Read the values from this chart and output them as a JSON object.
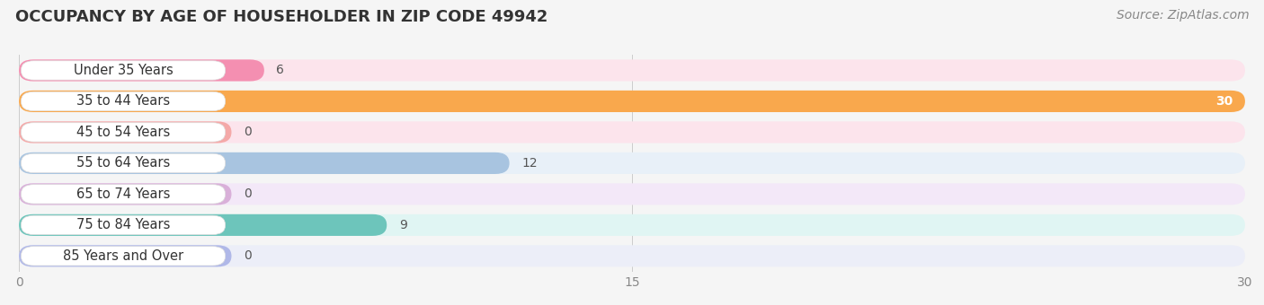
{
  "title": "OCCUPANCY BY AGE OF HOUSEHOLDER IN ZIP CODE 49942",
  "source": "Source: ZipAtlas.com",
  "categories": [
    "Under 35 Years",
    "35 to 44 Years",
    "45 to 54 Years",
    "55 to 64 Years",
    "65 to 74 Years",
    "75 to 84 Years",
    "85 Years and Over"
  ],
  "values": [
    6,
    30,
    0,
    12,
    0,
    9,
    0
  ],
  "bar_colors": [
    "#f48fb1",
    "#f9a84d",
    "#f4a9a8",
    "#a8c4e0",
    "#d9b0d9",
    "#6dc5bb",
    "#b0b8e8"
  ],
  "bar_bg_colors": [
    "#fce4ec",
    "#fff3e0",
    "#fce4ec",
    "#e8f0f8",
    "#f3e8f8",
    "#e0f5f3",
    "#eceef8"
  ],
  "xlim": [
    0,
    30
  ],
  "xticks": [
    0,
    15,
    30
  ],
  "background_color": "#f5f5f5",
  "title_fontsize": 13,
  "source_fontsize": 10,
  "label_fontsize": 10.5,
  "value_fontsize": 10,
  "value_color_inside": "white",
  "value_color_outside": "#555555"
}
